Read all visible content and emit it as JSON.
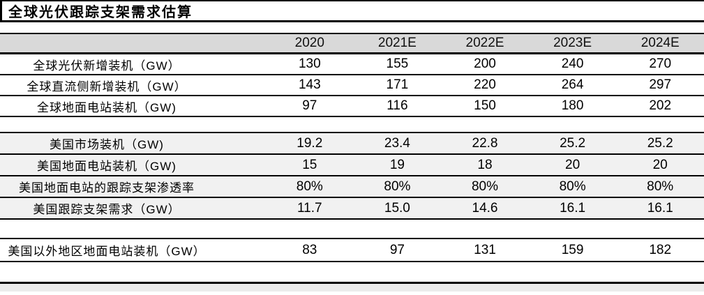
{
  "title": "全球光伏跟踪支架需求估算",
  "colors": {
    "header_bg": "#d9d9d9",
    "us_section_bg": "#f1f1f1",
    "bottom_strip_bg": "#ececec",
    "rule": "#000000",
    "text": "#000000"
  },
  "table": {
    "columns": [
      "2020",
      "2021E",
      "2022E",
      "2023E",
      "2024E"
    ],
    "rows": [
      {
        "label": "全球光伏新增装机（GW）",
        "values": [
          "130",
          "155",
          "200",
          "240",
          "270"
        ]
      },
      {
        "label": "全球直流侧新增装机（GW）",
        "values": [
          "143",
          "171",
          "220",
          "264",
          "297"
        ]
      },
      {
        "label": "全球地面电站装机（GW)",
        "values": [
          "97",
          "116",
          "150",
          "180",
          "202"
        ]
      },
      {
        "label": "美国市场装机（GW)",
        "values": [
          "19.2",
          "23.4",
          "22.8",
          "25.2",
          "25.2"
        ]
      },
      {
        "label": "美国地面电站装机（GW)",
        "values": [
          "15",
          "19",
          "18",
          "20",
          "20"
        ]
      },
      {
        "label": "美国地面电站的跟踪支架渗透率",
        "values": [
          "80%",
          "80%",
          "80%",
          "80%",
          "80%"
        ]
      },
      {
        "label": "美国跟踪支架需求（GW）",
        "values": [
          "11.7",
          "15.0",
          "14.6",
          "16.1",
          "16.1"
        ]
      },
      {
        "label": "美国以外地区地面电站装机（GW）",
        "values": [
          "83",
          "97",
          "131",
          "159",
          "182"
        ]
      }
    ]
  },
  "chart_data": {
    "type": "table",
    "title": "全球光伏跟踪支架需求估算",
    "columns": [
      "2020",
      "2021E",
      "2022E",
      "2023E",
      "2024E"
    ],
    "series": [
      {
        "name": "全球光伏新增装机（GW）",
        "values": [
          130,
          155,
          200,
          240,
          270
        ]
      },
      {
        "name": "全球直流侧新增装机（GW）",
        "values": [
          143,
          171,
          220,
          264,
          297
        ]
      },
      {
        "name": "全球地面电站装机（GW)",
        "values": [
          97,
          116,
          150,
          180,
          202
        ]
      },
      {
        "name": "美国市场装机（GW)",
        "values": [
          19.2,
          23.4,
          22.8,
          25.2,
          25.2
        ]
      },
      {
        "name": "美国地面电站装机（GW)",
        "values": [
          15,
          19,
          18,
          20,
          20
        ]
      },
      {
        "name": "美国地面电站的跟踪支架渗透率",
        "values": [
          "80%",
          "80%",
          "80%",
          "80%",
          "80%"
        ]
      },
      {
        "name": "美国跟踪支架需求（GW）",
        "values": [
          11.7,
          15.0,
          14.6,
          16.1,
          16.1
        ]
      },
      {
        "name": "美国以外地区地面电站装机（GW）",
        "values": [
          83,
          97,
          131,
          159,
          182
        ]
      }
    ]
  }
}
